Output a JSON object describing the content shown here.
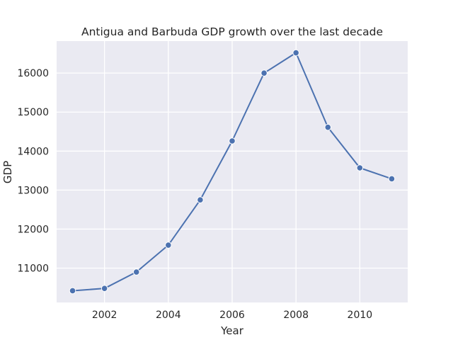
{
  "chart_data": {
    "type": "line",
    "title": "Antigua and Barbuda GDP growth over the last decade",
    "xlabel": "Year",
    "ylabel": "GDP",
    "x": [
      2001,
      2002,
      2003,
      2004,
      2005,
      2006,
      2007,
      2008,
      2009,
      2010,
      2011
    ],
    "series": [
      {
        "values": [
          10420,
          10480,
          10900,
          11590,
          12750,
          14260,
          16000,
          16520,
          14610,
          13570,
          13290
        ],
        "color": "#4c72b0"
      }
    ],
    "xlim": [
      2000.5,
      2011.5
    ],
    "ylim": [
      10120,
      16820
    ],
    "xticks": [
      2002,
      2004,
      2006,
      2008,
      2010
    ],
    "yticks": [
      11000,
      12000,
      13000,
      14000,
      15000,
      16000
    ],
    "grid": true,
    "legend": "none",
    "colors": {
      "plot_background": "#eaeaf2",
      "grid": "#ffffff",
      "line": "#4c72b0",
      "marker_edge": "#ffffff"
    }
  }
}
